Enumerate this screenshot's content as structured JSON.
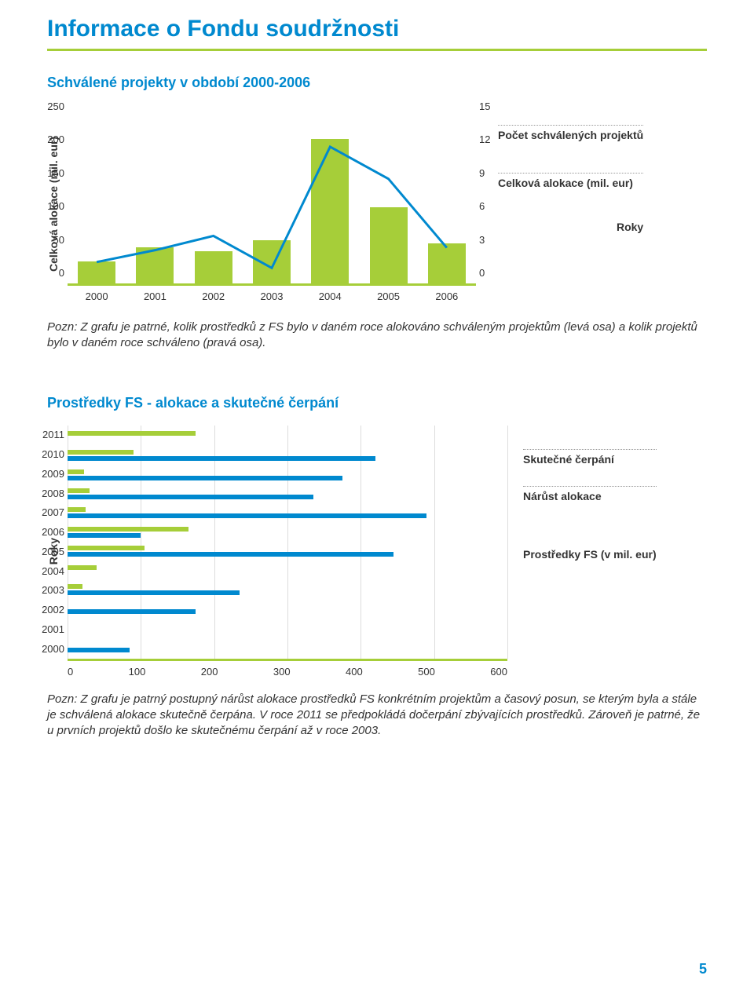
{
  "page": {
    "title": "Informace o Fondu soudržnosti",
    "number": "5",
    "colors": {
      "accent_blue": "#0089cf",
      "accent_green": "#a6ce39",
      "text": "#333333",
      "grid": "#dddddd",
      "dot": "#999999",
      "bg": "#ffffff"
    }
  },
  "chart1": {
    "title": "Schválené projekty v období 2000-2006",
    "type": "bar+line",
    "y1_label": "Celková alokace (mil. eur)",
    "y1_max": 250,
    "y1_ticks": [
      "250",
      "200",
      "150",
      "100",
      "50",
      "0"
    ],
    "y2_max": 15,
    "y2_ticks": [
      "15",
      "12",
      "9",
      "6",
      "3",
      "0"
    ],
    "x_ticks": [
      "2000",
      "2001",
      "2002",
      "2003",
      "2004",
      "2005",
      "2006"
    ],
    "x_axis_caption": "Roky",
    "bars_color": "#a6ce39",
    "bars": [
      30,
      50,
      45,
      60,
      200,
      105,
      55
    ],
    "line_color": "#0089cf",
    "line_width": 3,
    "line": [
      1.8,
      2.8,
      4.0,
      1.3,
      11.5,
      8.8,
      3.0
    ],
    "legend": [
      {
        "label": "Počet schválených projektů"
      },
      {
        "label": "Celková alokace (mil. eur)"
      }
    ],
    "note": "Pozn: Z grafu je patrné, kolik prostředků z FS bylo v daném roce alokováno schváleným projektům (levá osa) a kolik projektů bylo v daném roce schváleno (pravá osa)."
  },
  "chart2": {
    "title": "Prostředky FS - alokace a skutečné čerpání",
    "type": "hbar-grouped",
    "y_label": "Roky",
    "y_ticks": [
      "2011",
      "2010",
      "2009",
      "2008",
      "2007",
      "2006",
      "2005",
      "2004",
      "2003",
      "2002",
      "2001",
      "2000"
    ],
    "x_max": 600,
    "x_ticks": [
      "0",
      "100",
      "200",
      "300",
      "400",
      "500",
      "600"
    ],
    "x_caption": "Prostředky FS (v mil. eur)",
    "series_green_color": "#a6ce39",
    "series_blue_color": "#0089cf",
    "rows": [
      {
        "green": 175,
        "blue": 0
      },
      {
        "green": 90,
        "blue": 420
      },
      {
        "green": 22,
        "blue": 375
      },
      {
        "green": 30,
        "blue": 335
      },
      {
        "green": 25,
        "blue": 490
      },
      {
        "green": 165,
        "blue": 100
      },
      {
        "green": 105,
        "blue": 445
      },
      {
        "green": 40,
        "blue": 0
      },
      {
        "green": 20,
        "blue": 235
      },
      {
        "green": 0,
        "blue": 175
      },
      {
        "green": 0,
        "blue": 0
      },
      {
        "green": 0,
        "blue": 85
      }
    ],
    "legend": [
      {
        "label": "Skutečné čerpání"
      },
      {
        "label": "Nárůst alokace"
      }
    ],
    "note": "Pozn: Z grafu je patrný postupný nárůst alokace prostředků FS konkrétním projektům a časový posun, se kterým byla a stále je schválená alokace skutečně čerpána. V roce 2011 se předpokládá dočerpání zbývajících prostředků. Zároveň je patrné, že u prvních projektů došlo ke skutečnému čerpání až v roce 2003."
  }
}
